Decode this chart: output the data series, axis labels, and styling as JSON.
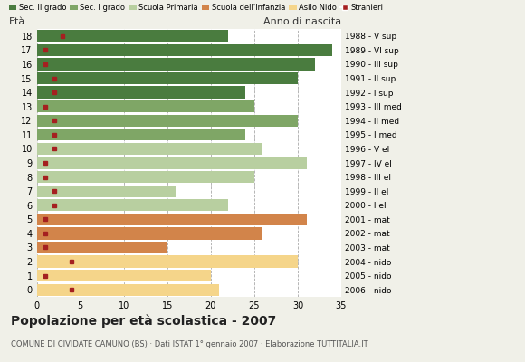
{
  "ages": [
    18,
    17,
    16,
    15,
    14,
    13,
    12,
    11,
    10,
    9,
    8,
    7,
    6,
    5,
    4,
    3,
    2,
    1,
    0
  ],
  "birth_years": [
    "1988 - V sup",
    "1989 - VI sup",
    "1990 - III sup",
    "1991 - II sup",
    "1992 - I sup",
    "1993 - III med",
    "1994 - II med",
    "1995 - I med",
    "1996 - V el",
    "1997 - IV el",
    "1998 - III el",
    "1999 - II el",
    "2000 - I el",
    "2001 - mat",
    "2002 - mat",
    "2003 - mat",
    "2004 - nido",
    "2005 - nido",
    "2006 - nido"
  ],
  "bar_values": [
    22,
    34,
    32,
    30,
    24,
    25,
    30,
    24,
    26,
    31,
    25,
    16,
    22,
    31,
    26,
    15,
    30,
    20,
    21
  ],
  "stranieri_values": [
    3,
    1,
    1,
    2,
    2,
    1,
    2,
    2,
    2,
    1,
    1,
    2,
    2,
    1,
    1,
    1,
    4,
    1,
    4
  ],
  "bar_colors": [
    "#4a7c3f",
    "#4a7c3f",
    "#4a7c3f",
    "#4a7c3f",
    "#4a7c3f",
    "#7fa666",
    "#7fa666",
    "#7fa666",
    "#b8cfa0",
    "#b8cfa0",
    "#b8cfa0",
    "#b8cfa0",
    "#b8cfa0",
    "#d2844a",
    "#d2844a",
    "#d2844a",
    "#f5d58a",
    "#f5d58a",
    "#f5d58a"
  ],
  "stranieri_color": "#a52020",
  "legend_labels": [
    "Sec. II grado",
    "Sec. I grado",
    "Scuola Primaria",
    "Scuola dell'Infanzia",
    "Asilo Nido",
    "Stranieri"
  ],
  "legend_colors": [
    "#4a7c3f",
    "#7fa666",
    "#b8cfa0",
    "#d2844a",
    "#f5d58a",
    "#a52020"
  ],
  "title": "Popolazione per età scolastica - 2007",
  "subtitle": "COMUNE DI CIVIDATE CAMUNO (BS) · Dati ISTAT 1° gennaio 2007 · Elaborazione TUTTITALIA.IT",
  "ylabel_left": "Età",
  "ylabel_right": "Anno di nascita",
  "xlim": [
    0,
    35
  ],
  "background_color": "#f0f0e8",
  "bar_background_color": "#ffffff"
}
